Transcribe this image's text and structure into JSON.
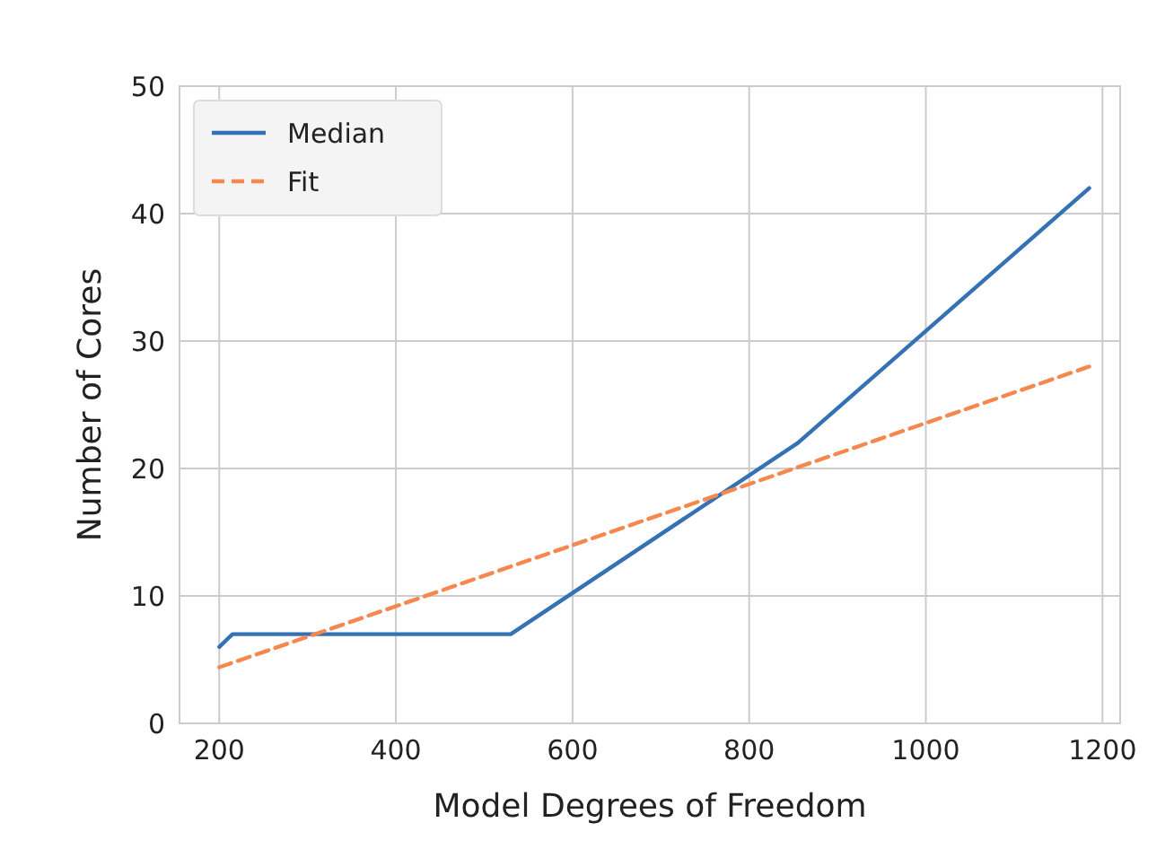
{
  "chart_data": {
    "type": "line",
    "xlabel": "Model Degrees of Freedom",
    "ylabel": "Number of Cores",
    "xlim": [
      155,
      1220
    ],
    "ylim": [
      0,
      50
    ],
    "xticks": [
      200,
      400,
      600,
      800,
      1000,
      1200
    ],
    "yticks": [
      0,
      10,
      20,
      30,
      40,
      50
    ],
    "grid": true,
    "legend": "top left",
    "marker": "none",
    "series": [
      {
        "name": "Median",
        "color": "#3471b5",
        "line_style": "solid",
        "x": [
          200,
          215,
          530,
          855,
          1185
        ],
        "values": [
          6,
          7,
          7,
          22,
          42
        ]
      },
      {
        "name": "Fit",
        "color": "#f5884f",
        "line_style": "dashed",
        "x": [
          200,
          1185
        ],
        "values": [
          4.4,
          28
        ]
      }
    ]
  }
}
